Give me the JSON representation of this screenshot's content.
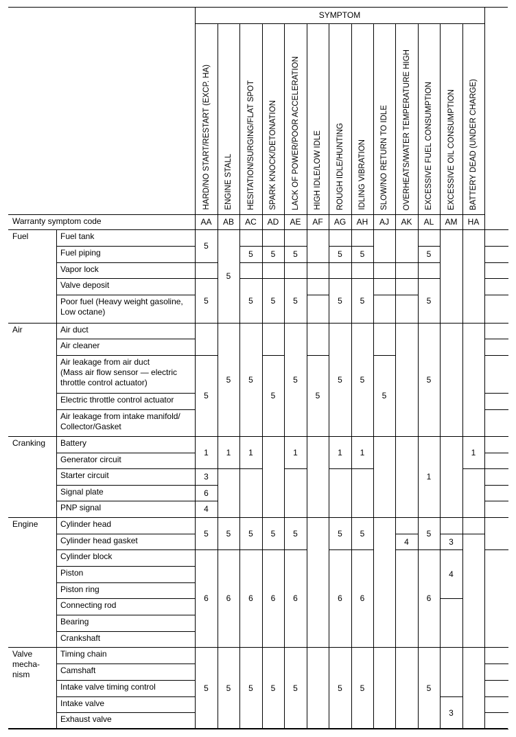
{
  "header": {
    "symptom_title": "SYMPTOM",
    "warranty_label": "Warranty symptom code"
  },
  "symptoms": [
    {
      "label": "HARD/NO START/RESTART (EXCP. HA)",
      "code": "AA",
      "cells": [
        [
          2,
          "5"
        ],
        [
          1,
          ""
        ],
        [
          2,
          "5"
        ],
        [
          2,
          ""
        ],
        [
          3,
          "5"
        ],
        [
          2,
          "1"
        ],
        [
          1,
          "3"
        ],
        [
          1,
          "6"
        ],
        [
          1,
          "4"
        ],
        [
          2,
          "5"
        ],
        [
          6,
          "6"
        ],
        [
          5,
          "5"
        ]
      ]
    },
    {
      "label": "ENGINE STALL",
      "code": "AB",
      "cells": [
        [
          5,
          "5"
        ],
        [
          5,
          "5"
        ],
        [
          2,
          "1"
        ],
        [
          3,
          ""
        ],
        [
          2,
          "5"
        ],
        [
          6,
          "6"
        ],
        [
          5,
          "5"
        ]
      ]
    },
    {
      "label": "HESITATION/SURGING/FLAT SPOT",
      "code": "AC",
      "cells": [
        [
          1,
          ""
        ],
        [
          1,
          "5"
        ],
        [
          1,
          ""
        ],
        [
          2,
          "5"
        ],
        [
          5,
          "5"
        ],
        [
          2,
          "1"
        ],
        [
          3,
          ""
        ],
        [
          2,
          "5"
        ],
        [
          6,
          "6"
        ],
        [
          5,
          "5"
        ]
      ]
    },
    {
      "label": "SPARK KNOCK/DETONATION",
      "code": "AD",
      "cells": [
        [
          1,
          ""
        ],
        [
          1,
          "5"
        ],
        [
          1,
          ""
        ],
        [
          2,
          "5"
        ],
        [
          2,
          ""
        ],
        [
          3,
          "5"
        ],
        [
          5,
          ""
        ],
        [
          2,
          "5"
        ],
        [
          6,
          "6"
        ],
        [
          5,
          "5"
        ]
      ]
    },
    {
      "label": "LACK OF POWER/POOR ACCELERATION",
      "code": "AE",
      "cells": [
        [
          1,
          ""
        ],
        [
          1,
          "5"
        ],
        [
          1,
          ""
        ],
        [
          2,
          "5"
        ],
        [
          5,
          "5"
        ],
        [
          2,
          "1"
        ],
        [
          3,
          ""
        ],
        [
          2,
          "5"
        ],
        [
          6,
          "6"
        ],
        [
          5,
          "5"
        ]
      ]
    },
    {
      "label": "HIGH IDLE/LOW IDLE",
      "code": "AF",
      "cells": [
        [
          2,
          ""
        ],
        [
          1,
          ""
        ],
        [
          1,
          ""
        ],
        [
          1,
          ""
        ],
        [
          2,
          ""
        ],
        [
          3,
          "5"
        ],
        [
          5,
          ""
        ],
        [
          8,
          ""
        ],
        [
          5,
          ""
        ]
      ]
    },
    {
      "label": "ROUGH IDLE/HUNTING",
      "code": "AG",
      "cells": [
        [
          1,
          ""
        ],
        [
          1,
          "5"
        ],
        [
          1,
          ""
        ],
        [
          2,
          "5"
        ],
        [
          5,
          "5"
        ],
        [
          2,
          "1"
        ],
        [
          3,
          ""
        ],
        [
          2,
          "5"
        ],
        [
          6,
          "6"
        ],
        [
          5,
          "5"
        ]
      ]
    },
    {
      "label": "IDLING VIBRATION",
      "code": "AH",
      "cells": [
        [
          1,
          ""
        ],
        [
          1,
          "5"
        ],
        [
          1,
          ""
        ],
        [
          2,
          "5"
        ],
        [
          5,
          "5"
        ],
        [
          2,
          "1"
        ],
        [
          3,
          ""
        ],
        [
          2,
          "5"
        ],
        [
          6,
          "6"
        ],
        [
          5,
          "5"
        ]
      ]
    },
    {
      "label": "SLOW/NO RETURN TO IDLE",
      "code": "AJ",
      "cells": [
        [
          2,
          ""
        ],
        [
          1,
          ""
        ],
        [
          1,
          ""
        ],
        [
          1,
          ""
        ],
        [
          2,
          ""
        ],
        [
          3,
          "5"
        ],
        [
          5,
          ""
        ],
        [
          8,
          ""
        ],
        [
          5,
          ""
        ]
      ]
    },
    {
      "label": "OVERHEATS/WATER TEMPERATURE HIGH",
      "code": "AK",
      "cells": [
        [
          2,
          ""
        ],
        [
          1,
          ""
        ],
        [
          1,
          ""
        ],
        [
          1,
          ""
        ],
        [
          5,
          ""
        ],
        [
          5,
          ""
        ],
        [
          1,
          ""
        ],
        [
          1,
          "4"
        ],
        [
          6,
          ""
        ],
        [
          5,
          ""
        ]
      ]
    },
    {
      "label": "EXCESSIVE FUEL CONSUMPTION",
      "code": "AL",
      "cells": [
        [
          1,
          ""
        ],
        [
          1,
          "5"
        ],
        [
          1,
          ""
        ],
        [
          2,
          "5"
        ],
        [
          5,
          "5"
        ],
        [
          5,
          "1"
        ],
        [
          2,
          "5"
        ],
        [
          6,
          "6"
        ],
        [
          5,
          "5"
        ]
      ]
    },
    {
      "label": "EXCESSIVE OIL CONSUMPTION",
      "code": "AM",
      "cells": [
        [
          5,
          ""
        ],
        [
          5,
          ""
        ],
        [
          5,
          ""
        ],
        [
          1,
          ""
        ],
        [
          1,
          "3"
        ],
        [
          3,
          "4"
        ],
        [
          3,
          ""
        ],
        [
          3,
          ""
        ],
        [
          2,
          "3"
        ]
      ]
    },
    {
      "label": "BATTERY DEAD (UNDER CHARGE)",
      "code": "HA",
      "cells": [
        [
          5,
          ""
        ],
        [
          5,
          ""
        ],
        [
          2,
          "1"
        ],
        [
          3,
          ""
        ],
        [
          1,
          ""
        ],
        [
          7,
          ""
        ],
        [
          5,
          ""
        ]
      ]
    }
  ],
  "extra_column_cells": [
    1,
    1,
    1,
    1,
    1,
    1,
    1,
    1,
    1,
    1,
    1,
    1,
    1,
    1,
    1,
    2,
    6,
    1,
    1,
    1,
    1,
    1
  ],
  "categories": [
    {
      "label": "Fuel",
      "items": [
        "Fuel tank",
        "Fuel piping",
        "Vapor lock",
        "Valve deposit",
        "Poor fuel (Heavy weight gasoline,\nLow octane)"
      ]
    },
    {
      "label": "Air",
      "items": [
        "Air duct",
        "Air cleaner",
        "Air leakage from air duct\n(Mass air flow sensor — electric\nthrottle control actuator)",
        "Electric throttle control actuator",
        "Air leakage from intake manifold/\nCollector/Gasket"
      ]
    },
    {
      "label": "Cranking",
      "items": [
        "Battery",
        "Generator circuit",
        "Starter circuit",
        "Signal plate",
        "PNP signal"
      ]
    },
    {
      "label": "Engine",
      "items": [
        "Cylinder head",
        "Cylinder head gasket",
        "Cylinder block",
        "Piston",
        "Piston ring",
        "Connecting rod",
        "Bearing",
        "Crankshaft"
      ]
    },
    {
      "label": "Valve\nmecha-\nnism",
      "items": [
        "Timing chain",
        "Camshaft",
        "Intake valve timing control",
        "Intake valve",
        "Exhaust valve"
      ]
    }
  ]
}
